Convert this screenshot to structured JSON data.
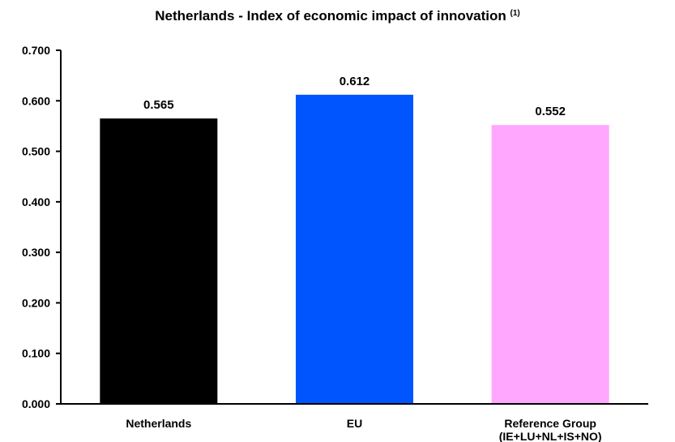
{
  "chart_data": {
    "type": "bar",
    "title": "Netherlands - Index of economic impact of innovation",
    "title_footnote": "(1)",
    "categories": [
      "Netherlands",
      "EU",
      "Reference Group"
    ],
    "category_sublabels": [
      "",
      "",
      "(IE+LU+NL+IS+NO)"
    ],
    "values": [
      0.565,
      0.612,
      0.552
    ],
    "value_labels": [
      "0.565",
      "0.612",
      "0.552"
    ],
    "bar_colors": [
      "#000000",
      "#0055ff",
      "#ffa6ff"
    ],
    "ylim": [
      0,
      0.7
    ],
    "yticks": [
      "0.000",
      "0.100",
      "0.200",
      "0.300",
      "0.400",
      "0.500",
      "0.600",
      "0.700"
    ],
    "xlabel": "",
    "ylabel": "",
    "grid": false,
    "legend": false
  }
}
